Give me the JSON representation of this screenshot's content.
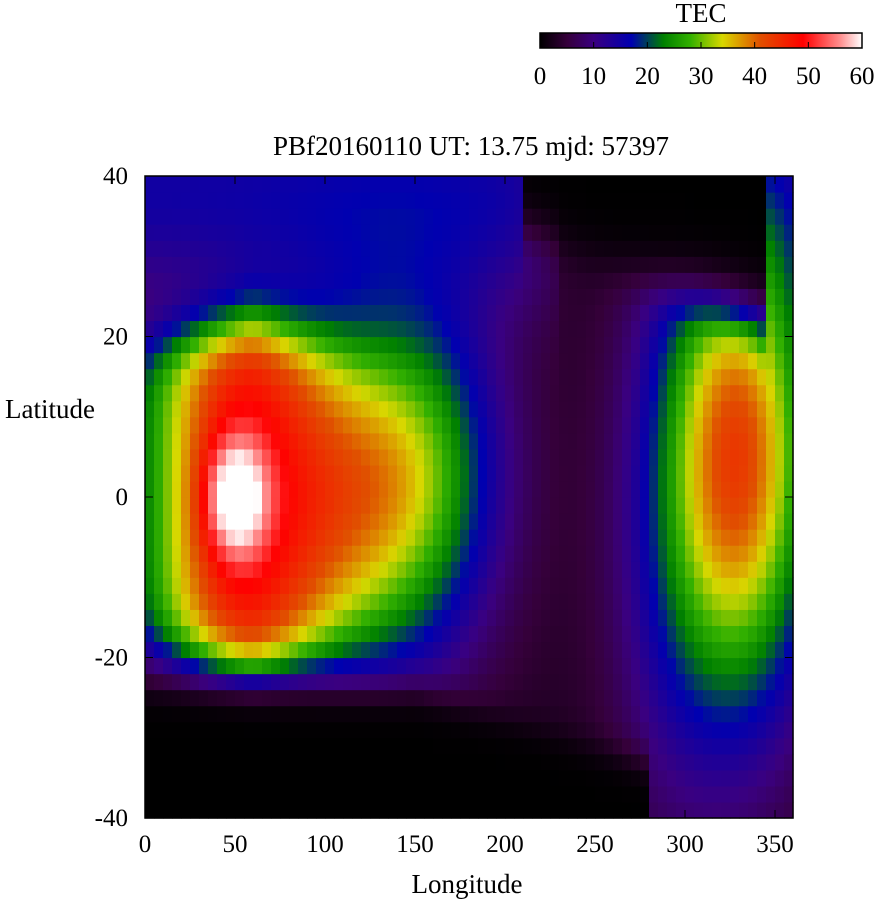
{
  "chart_data": {
    "type": "heatmap",
    "title": "PBf20160110  UT: 13.75  mjd: 57397",
    "xlabel": "Longitude",
    "ylabel": "Latitude",
    "xlim": [
      0,
      360
    ],
    "ylim": [
      -40,
      40
    ],
    "x_ticks": [
      "0",
      "50",
      "100",
      "150",
      "200",
      "250",
      "300",
      "350"
    ],
    "y_ticks": [
      "40",
      "20",
      "0",
      "-20",
      "-40"
    ],
    "colorbar": {
      "label": "TEC",
      "range": [
        0,
        60
      ],
      "ticks": [
        "0",
        "10",
        "20",
        "30",
        "40",
        "50",
        "60"
      ],
      "colormap": [
        {
          "value": 0,
          "color": "#000000"
        },
        {
          "value": 5,
          "color": "#35003a"
        },
        {
          "value": 10,
          "color": "#3a0080"
        },
        {
          "value": 17,
          "color": "#0000b0"
        },
        {
          "value": 23,
          "color": "#008000"
        },
        {
          "value": 28,
          "color": "#32b000"
        },
        {
          "value": 34,
          "color": "#d8d800"
        },
        {
          "value": 41,
          "color": "#e05000"
        },
        {
          "value": 49,
          "color": "#ff0000"
        },
        {
          "value": 56,
          "color": "#ff9090"
        },
        {
          "value": 60,
          "color": "#ffffff"
        }
      ]
    },
    "field_model": {
      "grid": {
        "lon_step": 5,
        "lat_step": 2
      },
      "anomaly": {
        "lon": 50,
        "lat": 0,
        "peak": 62,
        "base": 44,
        "lon_half_width": 55
      },
      "secondary_ridge": {
        "lon": 125,
        "value": 28
      },
      "east_band": {
        "lon": 330,
        "lat": 5,
        "peak": 44
      },
      "north_cap": 12,
      "background": 3
    }
  }
}
